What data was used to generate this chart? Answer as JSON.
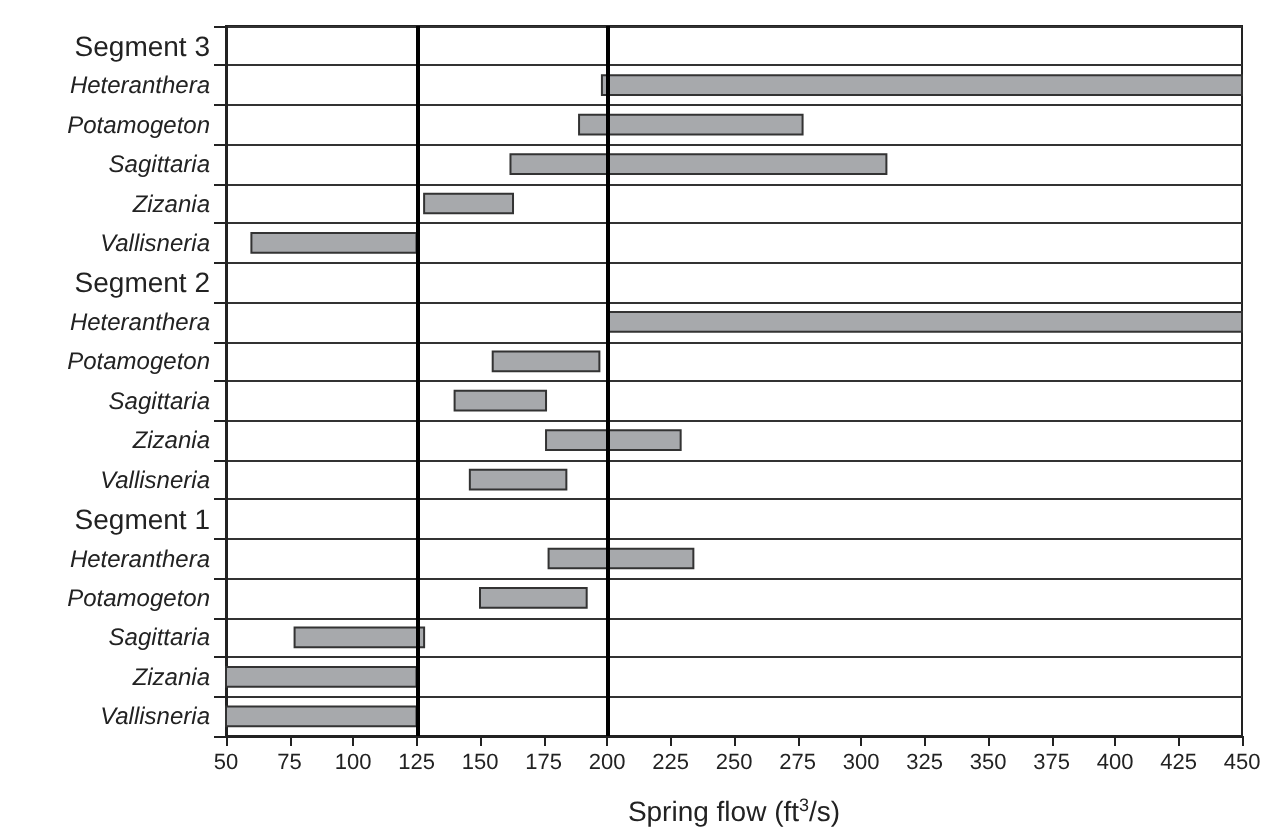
{
  "chart_data": {
    "type": "bar",
    "orientation": "horizontal",
    "xlabel": "Spring flow (ft$^{3}$/s)",
    "categories": [
      "Segment 3",
      "Heteranthera",
      "Potamogeton",
      "Sagittaria",
      "Zizania",
      "Vallisneria",
      "Segment 2",
      "Heteranthera",
      "Potamogeton",
      "Sagittaria",
      "Zizania",
      "Vallisneria",
      "Segment 1",
      "Heteranthera",
      "Potamogeton",
      "Sagittaria",
      "Zizania",
      "Vallisneria"
    ],
    "base": [
      null,
      198,
      189,
      162,
      128,
      60,
      null,
      200,
      155,
      140,
      176,
      146,
      null,
      177,
      150,
      77,
      50,
      50
    ],
    "values": [
      null,
      252,
      88,
      148,
      35,
      65,
      null,
      250,
      42,
      36,
      53,
      38,
      null,
      57,
      42,
      51,
      75,
      75
    ],
    "color": "#a7a9ac",
    "xlim": [
      50,
      450
    ],
    "xticks": [
      50,
      75,
      100,
      125,
      150,
      175,
      200,
      225,
      250,
      275,
      300,
      325,
      350,
      375,
      400,
      425,
      450
    ],
    "grid": "y",
    "ref_lines": [
      {
        "axis": "x",
        "value": 125,
        "color": "#000000"
      },
      {
        "axis": "x",
        "value": 200,
        "color": "#000000"
      }
    ]
  }
}
